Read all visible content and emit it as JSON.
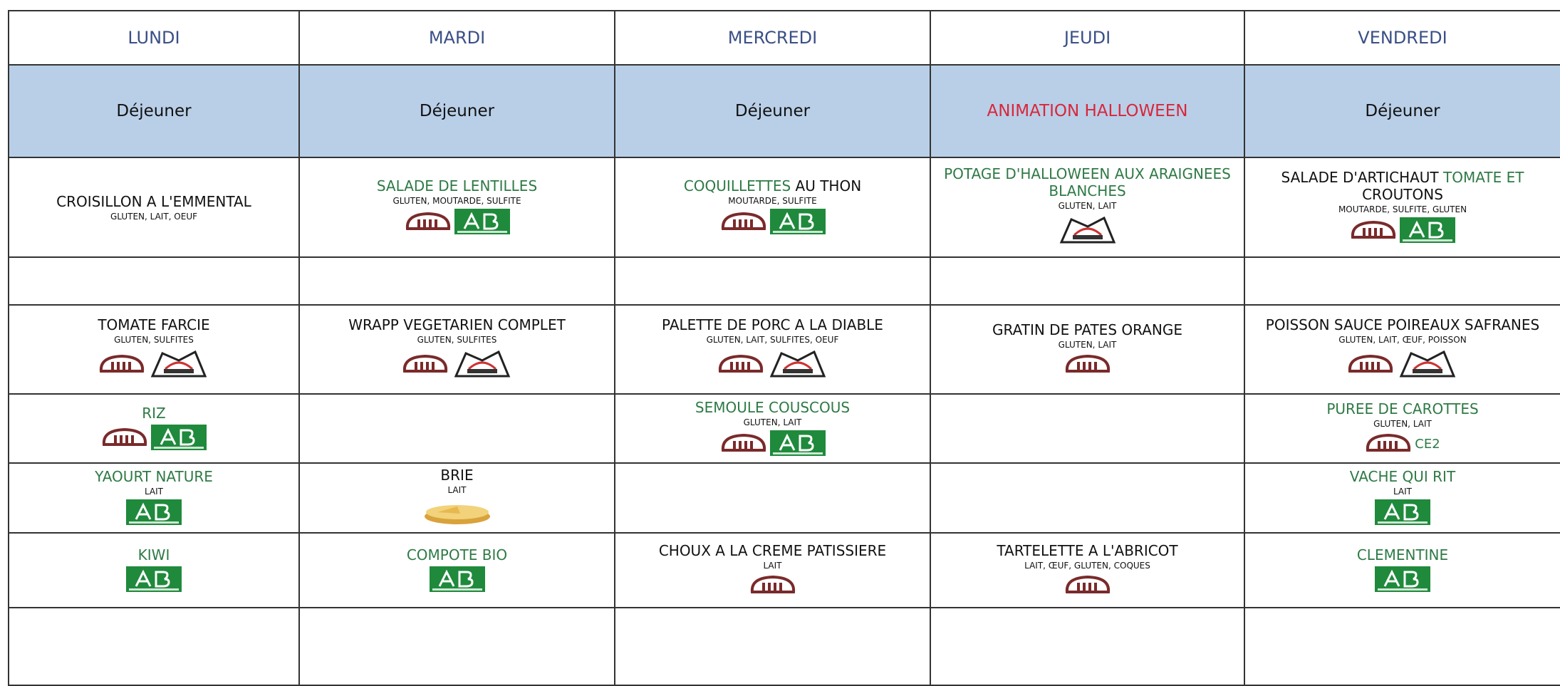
{
  "days": [
    "LUNDI",
    "MARDI",
    "MERCREDI",
    "JEUDI",
    "VENDREDI"
  ],
  "meals": [
    {
      "text": "Déjeuner"
    },
    {
      "text": "Déjeuner"
    },
    {
      "text": "Déjeuner"
    },
    {
      "text": "ANIMATION HALLOWEEN",
      "color": "#d9263a"
    },
    {
      "text": "Déjeuner"
    }
  ],
  "rows": [
    [
      {
        "name": [
          {
            "text": "CROISILLON A L'EMMENTAL"
          }
        ],
        "allergens": "GLUTEN, LAIT, OEUF"
      },
      {
        "name": [
          {
            "text": "SALADE DE LENTILLES",
            "color": "#2e7a45"
          }
        ],
        "allergens": "GLUTEN, MOUTARDE, SULFITE"
      },
      {
        "name": [
          {
            "text": "COQUILLETTES",
            "color": "#2e7a45"
          },
          {
            "text": " AU THON"
          }
        ],
        "allergens": "MOUTARDE, SULFITE"
      },
      {
        "name": [
          {
            "text": "POTAGE D'HALLOWEEN AUX ARAIGNEES BLANCHES",
            "color": "#2e7a45"
          }
        ],
        "allergens": "GLUTEN, LAIT"
      },
      {
        "name": [
          {
            "text": "SALADE D'ARTICHAUT "
          },
          {
            "text": "TOMATE ET",
            "color": "#2e7a45"
          },
          {
            "text": " CROUTONS"
          }
        ],
        "allergens": "MOUTARDE, SULFITE, GLUTEN"
      }
    ],
    [
      null,
      null,
      null,
      null,
      null
    ],
    [
      {
        "name": [
          {
            "text": "TOMATE FARCIE"
          }
        ],
        "allergens": "GLUTEN, SULFITES"
      },
      {
        "name": [
          {
            "text": "WRAPP VEGETARIEN COMPLET"
          }
        ],
        "allergens": "GLUTEN, SULFITES"
      },
      {
        "name": [
          {
            "text": "PALETTE DE PORC A LA DIABLE"
          }
        ],
        "allergens": "GLUTEN, LAIT, SULFITES, OEUF"
      },
      {
        "name": [
          {
            "text": "GRATIN DE PATES ORANGE"
          }
        ],
        "allergens": "GLUTEN, LAIT"
      },
      {
        "name": [
          {
            "text": "POISSON SAUCE POIREAUX SAFRANES"
          }
        ],
        "allergens": "GLUTEN, LAIT, ŒUF, POISSON"
      }
    ],
    [
      {
        "name": [
          {
            "text": "RIZ",
            "color": "#2e7a45"
          }
        ]
      },
      null,
      {
        "name": [
          {
            "text": "SEMOULE COUSCOUS",
            "color": "#2e7a45"
          }
        ],
        "allergens": "GLUTEN, LAIT"
      },
      null,
      {
        "name": [
          {
            "text": "PUREE DE CAROTTES",
            "color": "#2e7a45"
          }
        ],
        "allergens": "GLUTEN, LAIT",
        "note": "CE2"
      }
    ],
    [
      {
        "name": [
          {
            "text": "YAOURT NATURE",
            "color": "#2e7a45"
          }
        ],
        "allergens": "LAIT"
      },
      {
        "name": [
          {
            "text": "BRIE"
          }
        ],
        "allergens": "LAIT"
      },
      null,
      null,
      {
        "name": [
          {
            "text": "VACHE QUI RIT",
            "color": "#2e7a45"
          }
        ],
        "allergens": "LAIT"
      }
    ],
    [
      {
        "name": [
          {
            "text": "KIWI",
            "color": "#2e7a45"
          }
        ]
      },
      {
        "name": [
          {
            "text": "COMPOTE BIO",
            "color": "#2e7a45"
          }
        ]
      },
      {
        "name": [
          {
            "text": "CHOUX A LA CREME PATISSIERE"
          }
        ],
        "allergens": "LAIT"
      },
      {
        "name": [
          {
            "text": "TARTELETTE A L'ABRICOT"
          }
        ],
        "allergens": "LAIT, ŒUF, GLUTEN, COQUES"
      },
      {
        "name": [
          {
            "text": "CLEMENTINE",
            "color": "#2e7a45"
          }
        ]
      }
    ],
    [
      null,
      null,
      null,
      null,
      null
    ]
  ]
}
